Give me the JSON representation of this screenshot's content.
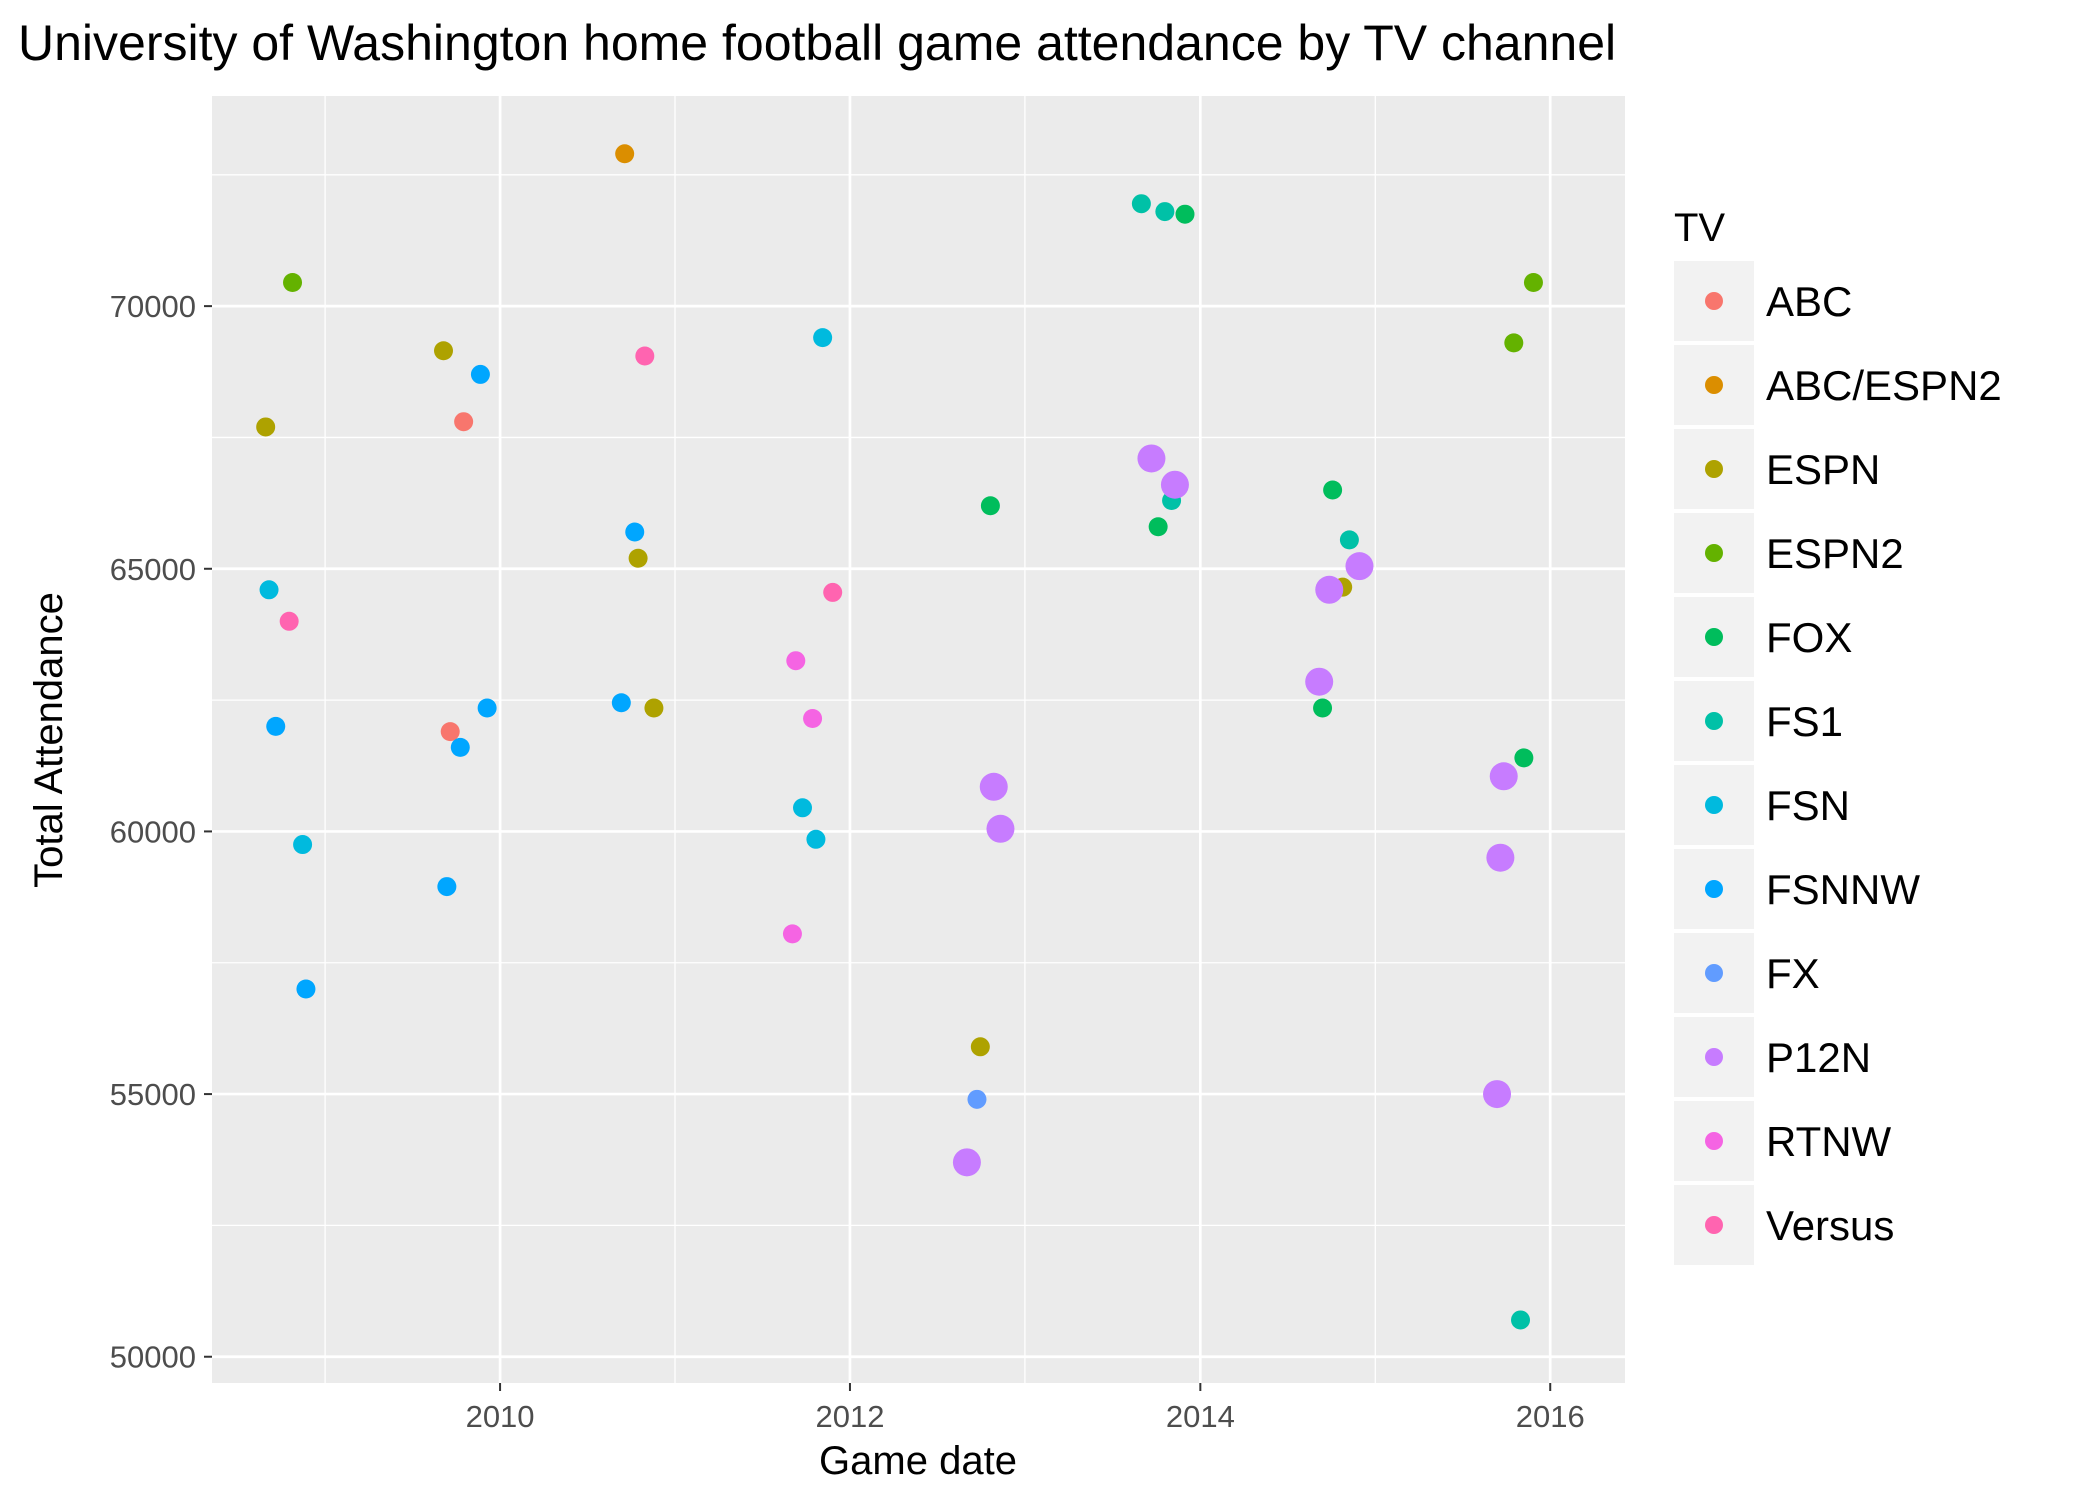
{
  "chart_data": {
    "type": "scatter",
    "title": "University of Washington home football game attendance by TV channel",
    "xlabel": "Game date",
    "ylabel": "Total Attendance",
    "xlim": [
      "2008-05-10",
      "2016-06-05"
    ],
    "ylim": [
      49500,
      74000
    ],
    "x_ticks": [
      {
        "date": "2010-01-01",
        "label": "2010"
      },
      {
        "date": "2012-01-01",
        "label": "2012"
      },
      {
        "date": "2014-01-01",
        "label": "2014"
      },
      {
        "date": "2016-01-01",
        "label": "2016"
      }
    ],
    "y_ticks": [
      50000,
      55000,
      60000,
      65000,
      70000
    ],
    "grid": true,
    "legend": {
      "title": "TV",
      "position": "right",
      "entries": [
        {
          "name": "ABC",
          "color": "#F8766D"
        },
        {
          "name": "ABC/ESPN2",
          "color": "#DB8E00"
        },
        {
          "name": "ESPN",
          "color": "#AEA200"
        },
        {
          "name": "ESPN2",
          "color": "#64B200"
        },
        {
          "name": "FOX",
          "color": "#00BD5C"
        },
        {
          "name": "FS1",
          "color": "#00C1A7"
        },
        {
          "name": "FSN",
          "color": "#00BADE"
        },
        {
          "name": "FSNNW",
          "color": "#00A6FF"
        },
        {
          "name": "FX",
          "color": "#619CFF"
        },
        {
          "name": "P12N",
          "color": "#C77CFF"
        },
        {
          "name": "RTNW",
          "color": "#F564E3"
        },
        {
          "name": "Versus",
          "color": "#FF64B0"
        }
      ]
    },
    "series": [
      {
        "name": "ABC",
        "points": [
          {
            "x": "2009-09-19",
            "y": 61900
          },
          {
            "x": "2009-10-17",
            "y": 67800
          }
        ]
      },
      {
        "name": "ABC/ESPN2",
        "points": [
          {
            "x": "2010-09-18",
            "y": 72900
          }
        ]
      },
      {
        "name": "ESPN",
        "points": [
          {
            "x": "2008-08-30",
            "y": 67700
          },
          {
            "x": "2009-09-05",
            "y": 69150
          },
          {
            "x": "2010-10-16",
            "y": 65200
          },
          {
            "x": "2010-11-18",
            "y": 62350
          },
          {
            "x": "2012-09-29",
            "y": 55900
          },
          {
            "x": "2014-10-25",
            "y": 64650
          }
        ]
      },
      {
        "name": "ESPN2",
        "points": [
          {
            "x": "2008-10-25",
            "y": 70450
          },
          {
            "x": "2015-10-17",
            "y": 69300
          },
          {
            "x": "2015-11-27",
            "y": 70450
          }
        ]
      },
      {
        "name": "FOX",
        "points": [
          {
            "x": "2012-10-20",
            "y": 66200
          },
          {
            "x": "2013-10-05",
            "y": 65800
          },
          {
            "x": "2013-11-30",
            "y": 71750
          },
          {
            "x": "2014-09-13",
            "y": 62350
          },
          {
            "x": "2014-10-04",
            "y": 66500
          },
          {
            "x": "2015-11-07",
            "y": 61400
          }
        ]
      },
      {
        "name": "FS1",
        "points": [
          {
            "x": "2013-08-31",
            "y": 71950
          },
          {
            "x": "2013-10-19",
            "y": 71800
          },
          {
            "x": "2013-11-02",
            "y": 66300
          },
          {
            "x": "2014-11-08",
            "y": 65550
          },
          {
            "x": "2015-10-31",
            "y": 50700
          }
        ]
      },
      {
        "name": "FSN",
        "points": [
          {
            "x": "2008-09-06",
            "y": 64600
          },
          {
            "x": "2008-11-15",
            "y": 59750
          },
          {
            "x": "2011-09-24",
            "y": 60450
          },
          {
            "x": "2011-10-22",
            "y": 59850
          },
          {
            "x": "2011-11-05",
            "y": 69400
          }
        ]
      },
      {
        "name": "FSNNW",
        "points": [
          {
            "x": "2008-09-20",
            "y": 62000
          },
          {
            "x": "2008-11-22",
            "y": 57000
          },
          {
            "x": "2009-09-12",
            "y": 58950
          },
          {
            "x": "2009-10-10",
            "y": 61600
          },
          {
            "x": "2009-11-21",
            "y": 68700
          },
          {
            "x": "2009-12-05",
            "y": 62350
          },
          {
            "x": "2010-09-11",
            "y": 62450
          },
          {
            "x": "2010-10-09",
            "y": 65700
          }
        ]
      },
      {
        "name": "FX",
        "points": [
          {
            "x": "2012-09-22",
            "y": 54900
          }
        ]
      },
      {
        "name": "P12N",
        "points": [
          {
            "x": "2012-09-01",
            "y": 53700
          },
          {
            "x": "2012-10-27",
            "y": 60850
          },
          {
            "x": "2012-11-10",
            "y": 60050
          },
          {
            "x": "2013-09-21",
            "y": 67100
          },
          {
            "x": "2013-11-09",
            "y": 66600
          },
          {
            "x": "2014-09-06",
            "y": 62850
          },
          {
            "x": "2014-09-27",
            "y": 64600
          },
          {
            "x": "2014-11-29",
            "y": 65050
          },
          {
            "x": "2015-09-12",
            "y": 55000
          },
          {
            "x": "2015-09-19",
            "y": 59500
          },
          {
            "x": "2015-09-26",
            "y": 61050
          }
        ]
      },
      {
        "name": "RTNW",
        "points": [
          {
            "x": "2011-09-03",
            "y": 58050
          },
          {
            "x": "2011-09-10",
            "y": 63250
          },
          {
            "x": "2011-10-15",
            "y": 62150
          }
        ]
      },
      {
        "name": "Versus",
        "points": [
          {
            "x": "2008-10-18",
            "y": 64000
          },
          {
            "x": "2010-10-30",
            "y": 69050
          },
          {
            "x": "2011-11-26",
            "y": 64550
          }
        ]
      }
    ]
  }
}
